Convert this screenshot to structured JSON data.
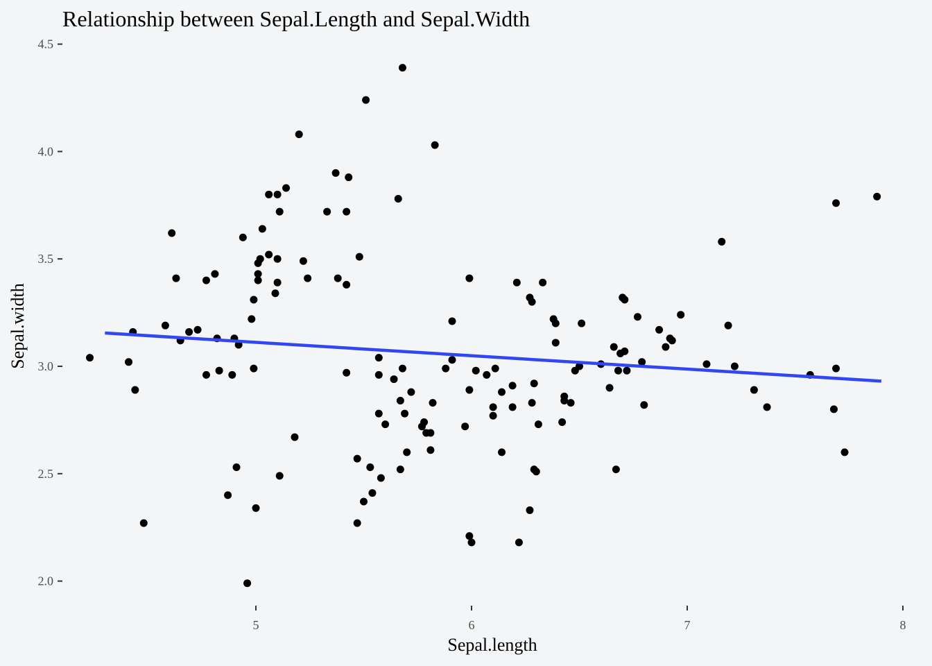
{
  "chart_data": {
    "type": "scatter",
    "title": "Relationship between Sepal.Length and Sepal.Width",
    "xlabel": "Sepal.length",
    "ylabel": "Sepal.width",
    "xlim": [
      4.3,
      7.9
    ],
    "ylim": [
      2.0,
      4.4
    ],
    "x_ticks": [
      5,
      6,
      7,
      8
    ],
    "x_tick_labels": [
      "5",
      "6",
      "7",
      "8"
    ],
    "y_ticks": [
      2.0,
      2.5,
      3.0,
      3.5,
      4.0,
      4.5
    ],
    "y_tick_labels": [
      "2.0",
      "2.5",
      "3.0",
      "3.5",
      "4.0",
      "4.5"
    ],
    "grid": false,
    "colors": {
      "points": "#000000",
      "trend": "#3047f2",
      "background": "#f3f5f7"
    },
    "trend_line": {
      "x": [
        4.3,
        7.9
      ],
      "y": [
        3.155,
        2.931
      ]
    },
    "points": [
      [
        4.23,
        3.04
      ],
      [
        4.41,
        3.02
      ],
      [
        4.43,
        3.16
      ],
      [
        4.44,
        2.89
      ],
      [
        4.48,
        2.27
      ],
      [
        4.58,
        3.19
      ],
      [
        4.61,
        3.62
      ],
      [
        4.63,
        3.41
      ],
      [
        4.65,
        3.12
      ],
      [
        4.69,
        3.16
      ],
      [
        4.73,
        3.17
      ],
      [
        4.77,
        2.96
      ],
      [
        4.77,
        3.4
      ],
      [
        4.81,
        3.43
      ],
      [
        4.82,
        3.13
      ],
      [
        4.83,
        2.98
      ],
      [
        4.87,
        2.4
      ],
      [
        4.89,
        2.96
      ],
      [
        4.9,
        3.13
      ],
      [
        4.91,
        2.53
      ],
      [
        4.92,
        3.1
      ],
      [
        4.94,
        3.6
      ],
      [
        4.96,
        1.99
      ],
      [
        4.98,
        3.22
      ],
      [
        4.99,
        2.99
      ],
      [
        4.99,
        3.31
      ],
      [
        5.0,
        2.34
      ],
      [
        5.01,
        3.4
      ],
      [
        5.01,
        3.43
      ],
      [
        5.01,
        3.48
      ],
      [
        5.02,
        3.5
      ],
      [
        5.03,
        3.64
      ],
      [
        5.06,
        3.52
      ],
      [
        5.06,
        3.8
      ],
      [
        5.09,
        3.34
      ],
      [
        5.1,
        3.39
      ],
      [
        5.1,
        3.5
      ],
      [
        5.1,
        3.8
      ],
      [
        5.11,
        3.72
      ],
      [
        5.11,
        2.49
      ],
      [
        5.14,
        3.83
      ],
      [
        5.18,
        2.67
      ],
      [
        5.2,
        4.08
      ],
      [
        5.22,
        3.49
      ],
      [
        5.24,
        3.41
      ],
      [
        5.33,
        3.72
      ],
      [
        5.37,
        3.9
      ],
      [
        5.38,
        3.41
      ],
      [
        5.42,
        3.38
      ],
      [
        5.42,
        3.72
      ],
      [
        5.42,
        2.97
      ],
      [
        5.43,
        3.88
      ],
      [
        5.47,
        2.57
      ],
      [
        5.47,
        2.27
      ],
      [
        5.48,
        3.51
      ],
      [
        5.5,
        2.37
      ],
      [
        5.51,
        4.24
      ],
      [
        5.53,
        2.53
      ],
      [
        5.54,
        2.41
      ],
      [
        5.57,
        3.04
      ],
      [
        5.57,
        2.96
      ],
      [
        5.57,
        2.78
      ],
      [
        5.58,
        2.48
      ],
      [
        5.6,
        2.73
      ],
      [
        5.64,
        2.94
      ],
      [
        5.66,
        3.78
      ],
      [
        5.67,
        2.84
      ],
      [
        5.67,
        2.52
      ],
      [
        5.68,
        4.39
      ],
      [
        5.68,
        2.99
      ],
      [
        5.69,
        2.78
      ],
      [
        5.7,
        2.6
      ],
      [
        5.72,
        2.88
      ],
      [
        5.77,
        2.72
      ],
      [
        5.78,
        2.74
      ],
      [
        5.79,
        2.69
      ],
      [
        5.81,
        2.69
      ],
      [
        5.81,
        2.61
      ],
      [
        5.82,
        2.83
      ],
      [
        5.83,
        4.03
      ],
      [
        5.88,
        2.99
      ],
      [
        5.91,
        3.03
      ],
      [
        5.91,
        3.21
      ],
      [
        5.97,
        2.72
      ],
      [
        5.99,
        2.21
      ],
      [
        5.99,
        2.89
      ],
      [
        5.99,
        3.41
      ],
      [
        6.0,
        2.18
      ],
      [
        6.02,
        2.98
      ],
      [
        6.07,
        2.96
      ],
      [
        6.1,
        2.81
      ],
      [
        6.1,
        2.77
      ],
      [
        6.11,
        2.99
      ],
      [
        6.14,
        2.6
      ],
      [
        6.14,
        2.88
      ],
      [
        6.19,
        2.91
      ],
      [
        6.19,
        2.81
      ],
      [
        6.21,
        3.39
      ],
      [
        6.22,
        2.18
      ],
      [
        6.27,
        2.33
      ],
      [
        6.27,
        3.32
      ],
      [
        6.28,
        2.83
      ],
      [
        6.28,
        3.3
      ],
      [
        6.29,
        2.92
      ],
      [
        6.29,
        2.52
      ],
      [
        6.3,
        2.51
      ],
      [
        6.31,
        2.73
      ],
      [
        6.33,
        3.39
      ],
      [
        6.38,
        3.22
      ],
      [
        6.39,
        3.2
      ],
      [
        6.39,
        3.11
      ],
      [
        6.42,
        2.74
      ],
      [
        6.43,
        2.84
      ],
      [
        6.43,
        2.86
      ],
      [
        6.46,
        2.83
      ],
      [
        6.48,
        2.98
      ],
      [
        6.5,
        3.0
      ],
      [
        6.51,
        3.2
      ],
      [
        6.6,
        3.01
      ],
      [
        6.64,
        2.9
      ],
      [
        6.66,
        3.09
      ],
      [
        6.67,
        2.52
      ],
      [
        6.68,
        2.98
      ],
      [
        6.69,
        3.06
      ],
      [
        6.7,
        3.32
      ],
      [
        6.71,
        3.31
      ],
      [
        6.71,
        3.07
      ],
      [
        6.72,
        2.98
      ],
      [
        6.77,
        3.23
      ],
      [
        6.79,
        3.02
      ],
      [
        6.8,
        2.82
      ],
      [
        6.87,
        3.17
      ],
      [
        6.9,
        3.09
      ],
      [
        6.92,
        3.13
      ],
      [
        6.93,
        3.12
      ],
      [
        6.97,
        3.24
      ],
      [
        7.09,
        3.01
      ],
      [
        7.16,
        3.58
      ],
      [
        7.19,
        3.19
      ],
      [
        7.22,
        3.0
      ],
      [
        7.31,
        2.89
      ],
      [
        7.37,
        2.81
      ],
      [
        7.57,
        2.96
      ],
      [
        7.68,
        2.8
      ],
      [
        7.69,
        3.76
      ],
      [
        7.69,
        2.99
      ],
      [
        7.73,
        2.6
      ],
      [
        7.88,
        3.79
      ]
    ]
  }
}
